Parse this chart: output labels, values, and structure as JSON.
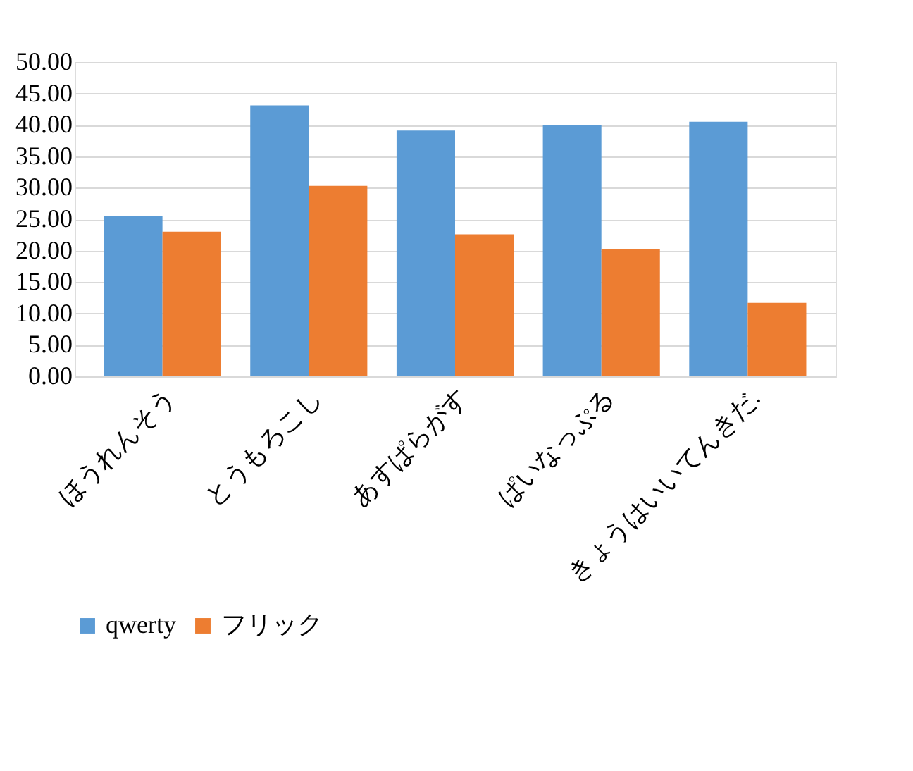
{
  "chart_data": {
    "type": "bar",
    "categories": [
      "ほうれんそう",
      "とうもろこし",
      "あすぱらがす",
      "ぱいなっぷる",
      "きょうはいいてんきだ."
    ],
    "series": [
      {
        "name": "qwerty",
        "color": "#5b9bd5",
        "values": [
          25.5,
          43.1,
          39.1,
          39.9,
          40.5
        ]
      },
      {
        "name": "フリック",
        "color": "#ed7d31",
        "values": [
          23.0,
          30.3,
          22.6,
          20.2,
          11.7
        ]
      }
    ],
    "ylim": [
      0,
      50
    ],
    "yticks": [
      {
        "value": 0,
        "label": "0.00"
      },
      {
        "value": 5,
        "label": "5.00"
      },
      {
        "value": 10,
        "label": "10.00"
      },
      {
        "value": 15,
        "label": "15.00"
      },
      {
        "value": 20,
        "label": "20.00"
      },
      {
        "value": 25,
        "label": "25.00"
      },
      {
        "value": 30,
        "label": "30.00"
      },
      {
        "value": 35,
        "label": "35.00"
      },
      {
        "value": 40,
        "label": "40.00"
      },
      {
        "value": 45,
        "label": "45.00"
      },
      {
        "value": 50,
        "label": "50.00"
      }
    ],
    "grid": "y",
    "legend": "bottom"
  }
}
